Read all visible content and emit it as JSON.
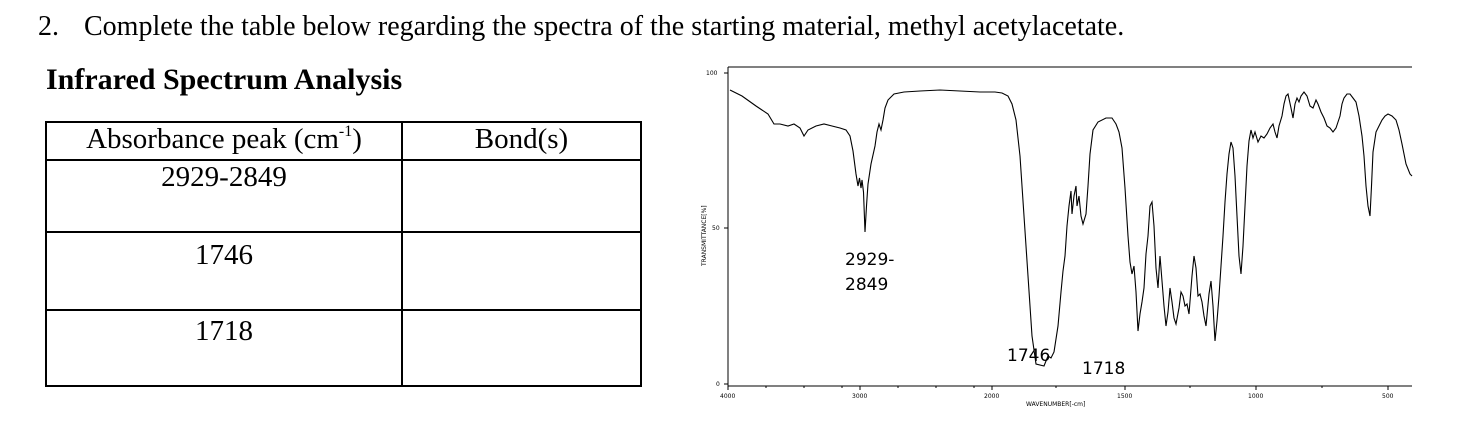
{
  "question": {
    "number": "2.",
    "text": "Complete the table below regarding the spectra of the starting material, methyl acetylacetate."
  },
  "section_title": "Infrared Spectrum Analysis",
  "table": {
    "header_peak_prefix": "Absorbance peak (cm",
    "header_peak_sup": "-1",
    "header_peak_suffix": ")",
    "header_bond": "Bond(s)",
    "rows": [
      {
        "peak": "2929-2849",
        "bond": ""
      },
      {
        "peak": "1746",
        "bond": ""
      },
      {
        "peak": "1718",
        "bond": ""
      }
    ]
  },
  "spectrum": {
    "y_axis_label": "TRANSMITTANCE[%]",
    "x_axis_label": "WAVENUMBER[-cm]",
    "y_ticks": [
      "100",
      "50",
      "0"
    ],
    "x_ticks": [
      "4000",
      "3000",
      "2000",
      "1500",
      "1000",
      "500"
    ],
    "annotations": {
      "peak_a_line1": "2929-",
      "peak_a_line2": "2849",
      "peak_b": "1746",
      "peak_c": "1718"
    }
  }
}
